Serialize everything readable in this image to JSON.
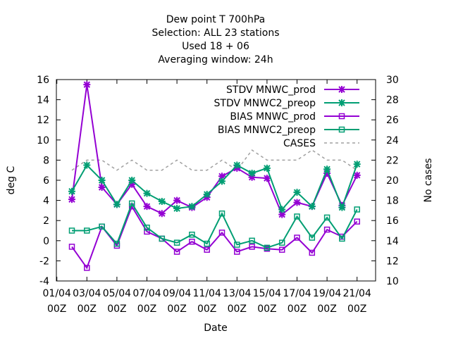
{
  "chart_data": {
    "type": "line",
    "title_lines": [
      "Dew point T 700hPa",
      "Selection: ALL      23 stations",
      "Used  18 + 06",
      "Averaging window: 24h"
    ],
    "xlabel": "Date",
    "ylabel": "deg C",
    "y2label": "No cases",
    "ylim": [
      -4,
      16
    ],
    "yticks": [
      "-4",
      "-2",
      "0",
      "2",
      "4",
      "6",
      "8",
      "10",
      "12",
      "14",
      "16"
    ],
    "y2lim": [
      10,
      30
    ],
    "y2ticks": [
      "10",
      "12",
      "14",
      "16",
      "18",
      "20",
      "22",
      "24",
      "26",
      "28",
      "30"
    ],
    "xtick_dates": [
      "01/04",
      "03/04",
      "05/04",
      "07/04",
      "09/04",
      "11/04",
      "13/04",
      "15/04",
      "17/04",
      "19/04",
      "21/04"
    ],
    "xtick_hour": "00Z",
    "legend_position": "top-right",
    "grid": false,
    "x": [
      "02/04 00Z",
      "03/04 00Z",
      "04/04 00Z",
      "05/04 00Z",
      "06/04 00Z",
      "07/04 00Z",
      "08/04 00Z",
      "09/04 00Z",
      "10/04 00Z",
      "11/04 00Z",
      "12/04 00Z",
      "13/04 00Z",
      "14/04 00Z",
      "15/04 00Z",
      "16/04 00Z",
      "17/04 00Z",
      "18/04 00Z",
      "19/04 00Z",
      "20/04 00Z",
      "21/04 00Z"
    ],
    "series": [
      {
        "name": "STDV MNWC_prod",
        "color": "#9400d3",
        "marker": "star",
        "axis": "y",
        "values": [
          4.1,
          15.5,
          5.3,
          3.6,
          5.6,
          3.4,
          2.7,
          4.0,
          3.3,
          4.3,
          6.4,
          7.2,
          6.3,
          6.2,
          2.6,
          3.8,
          3.4,
          6.7,
          3.5,
          6.5
        ]
      },
      {
        "name": "STDV MNWC2_preop",
        "color": "#009e73",
        "marker": "star",
        "axis": "y",
        "values": [
          4.9,
          7.5,
          6.0,
          3.6,
          6.0,
          4.7,
          3.9,
          3.2,
          3.4,
          4.6,
          5.9,
          7.5,
          6.7,
          7.2,
          3.1,
          4.8,
          3.4,
          7.1,
          3.3,
          7.6
        ]
      },
      {
        "name": "BIAS MNWC_prod",
        "color": "#9400d3",
        "marker": "square",
        "axis": "y",
        "values": [
          -0.6,
          -2.7,
          1.4,
          -0.5,
          3.4,
          0.9,
          0.2,
          -1.1,
          -0.1,
          -0.9,
          0.8,
          -1.1,
          -0.6,
          -0.8,
          -0.9,
          0.3,
          -1.2,
          1.1,
          0.4,
          1.9
        ]
      },
      {
        "name": "BIAS MNWC2_preop",
        "color": "#009e73",
        "marker": "square",
        "axis": "y",
        "values": [
          1.0,
          1.0,
          1.4,
          -0.3,
          3.7,
          1.3,
          0.2,
          -0.2,
          0.6,
          -0.3,
          2.7,
          -0.4,
          0.0,
          -0.7,
          -0.2,
          2.4,
          0.3,
          2.3,
          0.2,
          3.1
        ]
      },
      {
        "name": "CASES",
        "color": "#a0a0a0",
        "marker": "none",
        "dashed": true,
        "axis": "y2",
        "values": [
          21,
          22,
          22,
          21,
          22,
          21,
          21,
          22,
          21,
          21,
          22,
          21,
          23,
          22,
          22,
          22,
          23,
          22,
          22,
          21
        ]
      }
    ]
  }
}
